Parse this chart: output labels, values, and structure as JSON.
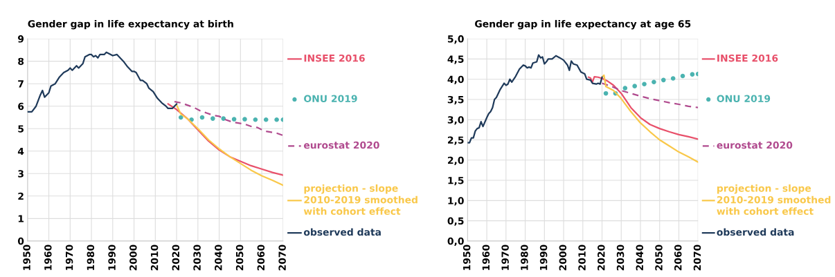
{
  "chart_data": [
    {
      "type": "line",
      "title": "Gender gap in life expectancy at birth",
      "xlim": [
        1950,
        2070
      ],
      "xticks": [
        1950,
        1960,
        1970,
        1980,
        1990,
        2000,
        2010,
        2020,
        2030,
        2040,
        2050,
        2060,
        2070
      ],
      "ylim": [
        0,
        9
      ],
      "yticks": [
        0,
        1,
        2,
        3,
        4,
        5,
        6,
        7,
        8,
        9
      ],
      "grid": true,
      "legend": "right",
      "series": [
        {
          "name": "INSEE 2016",
          "color": "#e8506a",
          "x": [
            2016,
            2020,
            2025,
            2030,
            2035,
            2040,
            2045,
            2050,
            2055,
            2060,
            2065,
            2070
          ],
          "values": [
            6.1,
            5.85,
            5.45,
            4.95,
            4.45,
            4.05,
            3.75,
            3.55,
            3.35,
            3.2,
            3.05,
            2.93
          ]
        },
        {
          "name": "ONU 2019",
          "type": "scatter",
          "marker": "circle",
          "color": "#4bb3b0",
          "x": [
            2022,
            2027,
            2032,
            2037,
            2042,
            2047,
            2052,
            2057,
            2062,
            2067,
            2070
          ],
          "values": [
            5.5,
            5.4,
            5.5,
            5.45,
            5.45,
            5.42,
            5.42,
            5.4,
            5.4,
            5.4,
            5.4
          ]
        },
        {
          "name": "eurostat 2020",
          "line_style": "dashed",
          "color": "#b04a8e",
          "x": [
            2019,
            2022,
            2025,
            2028,
            2031,
            2034,
            2037,
            2040,
            2043,
            2046,
            2049,
            2052,
            2055,
            2058,
            2061,
            2064,
            2067,
            2070
          ],
          "values": [
            6.2,
            6.15,
            6.05,
            5.95,
            5.8,
            5.7,
            5.6,
            5.55,
            5.4,
            5.3,
            5.25,
            5.2,
            5.1,
            5.05,
            4.9,
            4.85,
            4.8,
            4.7
          ]
        },
        {
          "name": "projection - slope\n2010-2019 smoothed\nwith cohort effect",
          "color": "#f9c84a",
          "x": [
            2020,
            2022,
            2025,
            2030,
            2035,
            2040,
            2045,
            2050,
            2055,
            2060,
            2065,
            2070
          ],
          "values": [
            6.05,
            5.65,
            5.45,
            5.0,
            4.5,
            4.1,
            3.75,
            3.45,
            3.15,
            2.9,
            2.7,
            2.48
          ]
        },
        {
          "name": "observed data",
          "color": "#1f3a5a",
          "x": [
            1950,
            1952,
            1954,
            1956,
            1957,
            1958,
            1960,
            1961,
            1963,
            1965,
            1967,
            1969,
            1970,
            1971,
            1973,
            1974,
            1976,
            1977,
            1979,
            1980,
            1981,
            1982,
            1983,
            1984,
            1986,
            1987,
            1988,
            1990,
            1992,
            1993,
            1995,
            1997,
            1999,
            2000,
            2001,
            2003,
            2004,
            2006,
            2007,
            2009,
            2011,
            2013,
            2015,
            2016,
            2018,
            2019,
            2020
          ],
          "values": [
            5.75,
            5.75,
            6.0,
            6.5,
            6.7,
            6.4,
            6.6,
            6.9,
            7.0,
            7.3,
            7.5,
            7.6,
            7.7,
            7.6,
            7.8,
            7.7,
            7.9,
            8.2,
            8.3,
            8.3,
            8.2,
            8.25,
            8.15,
            8.3,
            8.3,
            8.4,
            8.35,
            8.25,
            8.3,
            8.2,
            8.0,
            7.75,
            7.55,
            7.55,
            7.5,
            7.15,
            7.15,
            7.0,
            6.8,
            6.65,
            6.35,
            6.15,
            6.0,
            5.9,
            5.9,
            6.0,
            6.1
          ]
        }
      ]
    },
    {
      "type": "line",
      "title": "Gender gap in life expectancy at age 65",
      "xlim": [
        1950,
        2070
      ],
      "xticks": [
        1950,
        1960,
        1970,
        1980,
        1990,
        2000,
        2010,
        2020,
        2030,
        2040,
        2050,
        2060,
        2070
      ],
      "ylim": [
        0,
        5
      ],
      "yticks": [
        {
          "value": 0,
          "label": "0,0"
        },
        {
          "value": 0.5,
          "label": "0,5"
        },
        {
          "value": 1,
          "label": "1,0"
        },
        {
          "value": 1.5,
          "label": "1,5"
        },
        {
          "value": 2,
          "label": "2,0"
        },
        {
          "value": 2.5,
          "label": "2,5"
        },
        {
          "value": 3,
          "label": "3,0"
        },
        {
          "value": 3.5,
          "label": "3,5"
        },
        {
          "value": 4,
          "label": "4,0"
        },
        {
          "value": 4.5,
          "label": "4,5"
        },
        {
          "value": 5,
          "label": "5,0"
        }
      ],
      "grid": true,
      "legend": "right",
      "series": [
        {
          "name": "INSEE 2016",
          "color": "#e8506a",
          "x": [
            2013,
            2014,
            2015,
            2016,
            2018,
            2020,
            2023,
            2026,
            2030,
            2035,
            2040,
            2045,
            2050,
            2055,
            2060,
            2065,
            2070
          ],
          "values": [
            4.05,
            4.03,
            3.93,
            4.06,
            4.05,
            4.02,
            3.95,
            3.85,
            3.65,
            3.3,
            3.05,
            2.88,
            2.78,
            2.7,
            2.63,
            2.58,
            2.52
          ]
        },
        {
          "name": "ONU 2019",
          "type": "scatter",
          "marker": "circle",
          "color": "#4bb3b0",
          "x": [
            2022,
            2027,
            2032,
            2037,
            2042,
            2047,
            2052,
            2057,
            2062,
            2067,
            2070
          ],
          "values": [
            3.65,
            3.65,
            3.78,
            3.83,
            3.88,
            3.93,
            3.98,
            4.02,
            4.08,
            4.12,
            4.13
          ]
        },
        {
          "name": "eurostat 2020",
          "line_style": "dashed",
          "color": "#b04a8e",
          "x": [
            2020,
            2025,
            2030,
            2035,
            2040,
            2045,
            2050,
            2055,
            2060,
            2065,
            2070
          ],
          "values": [
            3.9,
            3.82,
            3.72,
            3.65,
            3.58,
            3.52,
            3.47,
            3.42,
            3.38,
            3.33,
            3.3
          ]
        },
        {
          "name": "projection - slope\n2010-2019 smoothed\nwith cohort effect",
          "color": "#f9c84a",
          "x": [
            2020,
            2021,
            2022,
            2026,
            2030,
            2035,
            2040,
            2045,
            2050,
            2055,
            2060,
            2065,
            2070
          ],
          "values": [
            4.05,
            4.1,
            3.82,
            3.72,
            3.52,
            3.2,
            2.92,
            2.7,
            2.5,
            2.35,
            2.2,
            2.08,
            1.95
          ]
        },
        {
          "name": "observed data",
          "color": "#1f3a5a",
          "x": [
            1950,
            1951,
            1952,
            1953,
            1954,
            1955,
            1956,
            1957,
            1958,
            1960,
            1961,
            1962,
            1963,
            1964,
            1965,
            1967,
            1969,
            1970,
            1971,
            1972,
            1973,
            1975,
            1977,
            1979,
            1980,
            1981,
            1982,
            1983,
            1984,
            1986,
            1987,
            1988,
            1989,
            1990,
            1991,
            1992,
            1994,
            1996,
            1998,
            2000,
            2002,
            2003,
            2004,
            2005,
            2007,
            2009,
            2011,
            2012,
            2014,
            2015,
            2017,
            2018,
            2019,
            2020
          ],
          "values": [
            2.43,
            2.43,
            2.55,
            2.55,
            2.72,
            2.78,
            2.8,
            2.95,
            2.83,
            3.05,
            3.15,
            3.2,
            3.3,
            3.5,
            3.55,
            3.75,
            3.9,
            3.85,
            3.88,
            4.0,
            3.93,
            4.07,
            4.25,
            4.35,
            4.33,
            4.28,
            4.3,
            4.28,
            4.4,
            4.43,
            4.6,
            4.53,
            4.55,
            4.38,
            4.43,
            4.5,
            4.5,
            4.58,
            4.53,
            4.47,
            4.35,
            4.22,
            4.45,
            4.38,
            4.35,
            4.18,
            4.13,
            4.0,
            3.98,
            3.9,
            3.88,
            3.9,
            3.88,
            4.05
          ]
        }
      ]
    }
  ]
}
